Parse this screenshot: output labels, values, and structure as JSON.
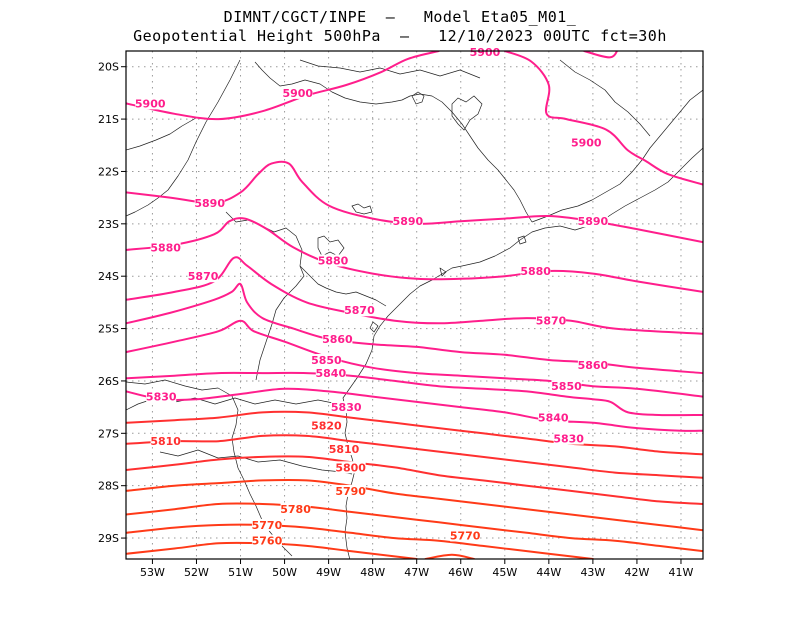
{
  "title": {
    "line1": "DIMNT/CGCT/INPE  —   Model Eta05_M01_",
    "line2": "Geopotential Height 500hPa  —   12/10/2023 00UTC fct=30h"
  },
  "map": {
    "lon_range": [
      -53.6,
      -40.5
    ],
    "lat_range": [
      -29.4,
      -19.7
    ],
    "x_ticks": [
      {
        "value": -53,
        "label": "53W"
      },
      {
        "value": -52,
        "label": "52W"
      },
      {
        "value": -51,
        "label": "51W"
      },
      {
        "value": -50,
        "label": "50W"
      },
      {
        "value": -49,
        "label": "49W"
      },
      {
        "value": -48,
        "label": "48W"
      },
      {
        "value": -47,
        "label": "47W"
      },
      {
        "value": -46,
        "label": "46W"
      },
      {
        "value": -45,
        "label": "45W"
      },
      {
        "value": -44,
        "label": "44W"
      },
      {
        "value": -43,
        "label": "43W"
      },
      {
        "value": -42,
        "label": "42W"
      },
      {
        "value": -41,
        "label": "41W"
      }
    ],
    "y_ticks": [
      {
        "value": -20,
        "label": "20S"
      },
      {
        "value": -21,
        "label": "21S"
      },
      {
        "value": -22,
        "label": "22S"
      },
      {
        "value": -23,
        "label": "23S"
      },
      {
        "value": -24,
        "label": "24S"
      },
      {
        "value": -25,
        "label": "25S"
      },
      {
        "value": -26,
        "label": "26S"
      },
      {
        "value": -27,
        "label": "27S"
      },
      {
        "value": -28,
        "label": "28S"
      },
      {
        "value": -29,
        "label": "29S"
      }
    ],
    "grid": "dotted"
  },
  "contours": [
    {
      "level": 5900,
      "color": "#ff1e8c",
      "points": [
        [
          -53.6,
          -20.7
        ],
        [
          -52.5,
          -20.9
        ],
        [
          -51.5,
          -21.0
        ],
        [
          -50.5,
          -20.85
        ],
        [
          -49.5,
          -20.55
        ],
        [
          -48.6,
          -20.35
        ],
        [
          -47.8,
          -20.1
        ],
        [
          -47.2,
          -19.85
        ],
        [
          -46.5,
          -19.7
        ]
      ]
    },
    {
      "level": 5900,
      "color": "#ff1e8c",
      "points": [
        [
          -45.0,
          -19.7
        ],
        [
          -44.4,
          -19.9
        ],
        [
          -44.0,
          -20.35
        ],
        [
          -44.05,
          -20.9
        ],
        [
          -43.6,
          -21.0
        ],
        [
          -42.7,
          -21.2
        ],
        [
          -42.2,
          -21.6
        ],
        [
          -41.8,
          -21.8
        ],
        [
          -41.3,
          -22.05
        ],
        [
          -40.5,
          -22.25
        ]
      ]
    },
    {
      "level": 5900,
      "color": "#ff1e8c",
      "points": [
        [
          -43.2,
          -19.7
        ],
        [
          -42.6,
          -19.82
        ],
        [
          -42.4,
          -19.6
        ]
      ]
    },
    {
      "level": 5890,
      "color": "#ff1e8c",
      "points": [
        [
          -53.6,
          -22.4
        ],
        [
          -52.6,
          -22.5
        ],
        [
          -51.6,
          -22.6
        ],
        [
          -51.0,
          -22.4
        ],
        [
          -50.6,
          -22.05
        ],
        [
          -50.3,
          -21.85
        ],
        [
          -49.9,
          -21.85
        ],
        [
          -49.6,
          -22.2
        ],
        [
          -49.0,
          -22.65
        ],
        [
          -48.0,
          -22.9
        ],
        [
          -47.0,
          -23.0
        ],
        [
          -46.0,
          -22.95
        ],
        [
          -45.0,
          -22.9
        ],
        [
          -44.0,
          -22.85
        ],
        [
          -43.0,
          -22.95
        ],
        [
          -42.0,
          -23.1
        ],
        [
          -40.5,
          -23.35
        ]
      ]
    },
    {
      "level": 5880,
      "color": "#ff1e8c",
      "points": [
        [
          -53.6,
          -23.5
        ],
        [
          -52.5,
          -23.4
        ],
        [
          -51.6,
          -23.2
        ],
        [
          -51.25,
          -22.95
        ],
        [
          -50.9,
          -22.9
        ],
        [
          -50.4,
          -23.1
        ],
        [
          -49.8,
          -23.45
        ],
        [
          -49.0,
          -23.75
        ],
        [
          -48.0,
          -23.95
        ],
        [
          -47.0,
          -24.05
        ],
        [
          -46.0,
          -24.05
        ],
        [
          -45.0,
          -24.0
        ],
        [
          -44.0,
          -23.9
        ],
        [
          -43.0,
          -23.95
        ],
        [
          -42.0,
          -24.1
        ],
        [
          -40.5,
          -24.3
        ]
      ]
    },
    {
      "level": 5870,
      "color": "#ff1e8c",
      "points": [
        [
          -53.6,
          -24.45
        ],
        [
          -52.5,
          -24.3
        ],
        [
          -51.6,
          -24.1
        ],
        [
          -51.15,
          -23.65
        ],
        [
          -50.85,
          -23.8
        ],
        [
          -50.3,
          -24.15
        ],
        [
          -49.5,
          -24.5
        ],
        [
          -48.5,
          -24.7
        ],
        [
          -47.5,
          -24.85
        ],
        [
          -46.5,
          -24.9
        ],
        [
          -45.5,
          -24.85
        ],
        [
          -44.5,
          -24.8
        ],
        [
          -43.5,
          -24.85
        ],
        [
          -42.5,
          -25.0
        ],
        [
          -40.5,
          -25.1
        ]
      ]
    },
    {
      "level": 5860,
      "color": "#ff1e8c",
      "points": [
        [
          -53.6,
          -24.9
        ],
        [
          -52.6,
          -24.7
        ],
        [
          -51.6,
          -24.45
        ],
        [
          -51.2,
          -24.3
        ],
        [
          -51.0,
          -24.15
        ],
        [
          -50.85,
          -24.5
        ],
        [
          -50.5,
          -24.8
        ],
        [
          -49.8,
          -25.0
        ],
        [
          -49.0,
          -25.2
        ],
        [
          -48.0,
          -25.3
        ],
        [
          -47.0,
          -25.35
        ],
        [
          -46.0,
          -25.45
        ],
        [
          -45.0,
          -25.5
        ],
        [
          -44.0,
          -25.6
        ],
        [
          -43.0,
          -25.65
        ],
        [
          -42.0,
          -25.75
        ],
        [
          -40.5,
          -25.85
        ]
      ]
    },
    {
      "level": 5850,
      "color": "#ff1e8c",
      "points": [
        [
          -53.6,
          -25.45
        ],
        [
          -52.5,
          -25.25
        ],
        [
          -51.5,
          -25.05
        ],
        [
          -51.0,
          -24.85
        ],
        [
          -50.7,
          -25.05
        ],
        [
          -50.0,
          -25.25
        ],
        [
          -49.0,
          -25.55
        ],
        [
          -48.0,
          -25.75
        ],
        [
          -47.0,
          -25.85
        ],
        [
          -46.0,
          -25.9
        ],
        [
          -45.0,
          -25.95
        ],
        [
          -44.0,
          -26.0
        ],
        [
          -43.0,
          -26.1
        ],
        [
          -42.0,
          -26.15
        ],
        [
          -40.5,
          -26.3
        ]
      ]
    },
    {
      "level": 5840,
      "color": "#ff1e8c",
      "points": [
        [
          -53.6,
          -25.95
        ],
        [
          -52.5,
          -25.9
        ],
        [
          -51.5,
          -25.85
        ],
        [
          -50.5,
          -25.85
        ],
        [
          -49.5,
          -25.85
        ],
        [
          -48.5,
          -25.9
        ],
        [
          -47.5,
          -26.0
        ],
        [
          -46.5,
          -26.1
        ],
        [
          -45.5,
          -26.15
        ],
        [
          -44.5,
          -26.2
        ],
        [
          -43.6,
          -26.3
        ],
        [
          -43.0,
          -26.35
        ],
        [
          -42.6,
          -26.4
        ],
        [
          -42.2,
          -26.6
        ],
        [
          -41.5,
          -26.65
        ],
        [
          -40.5,
          -26.65
        ]
      ]
    },
    {
      "level": 5830,
      "color": "#ff1e8c",
      "points": [
        [
          -53.6,
          -26.2
        ],
        [
          -52.8,
          -26.35
        ],
        [
          -52.0,
          -26.35
        ],
        [
          -51.0,
          -26.25
        ],
        [
          -50.0,
          -26.15
        ],
        [
          -49.0,
          -26.2
        ],
        [
          -48.0,
          -26.3
        ],
        [
          -47.0,
          -26.4
        ],
        [
          -46.0,
          -26.5
        ],
        [
          -45.0,
          -26.6
        ],
        [
          -44.0,
          -26.75
        ],
        [
          -43.0,
          -26.8
        ],
        [
          -42.0,
          -26.9
        ],
        [
          -41.0,
          -26.95
        ],
        [
          -40.5,
          -26.95
        ]
      ]
    },
    {
      "level": 5820,
      "color": "#ff3030",
      "points": [
        [
          -53.6,
          -26.8
        ],
        [
          -52.5,
          -26.75
        ],
        [
          -51.5,
          -26.7
        ],
        [
          -50.5,
          -26.6
        ],
        [
          -49.5,
          -26.6
        ],
        [
          -48.5,
          -26.7
        ],
        [
          -47.5,
          -26.8
        ],
        [
          -46.5,
          -26.9
        ],
        [
          -45.5,
          -27.0
        ],
        [
          -44.5,
          -27.1
        ],
        [
          -43.5,
          -27.2
        ],
        [
          -42.5,
          -27.25
        ],
        [
          -41.5,
          -27.35
        ],
        [
          -40.5,
          -27.4
        ]
      ]
    },
    {
      "level": 5810,
      "color": "#ff3030",
      "points": [
        [
          -53.6,
          -27.2
        ],
        [
          -52.5,
          -27.15
        ],
        [
          -51.5,
          -27.15
        ],
        [
          -50.5,
          -27.05
        ],
        [
          -49.5,
          -27.05
        ],
        [
          -48.5,
          -27.15
        ],
        [
          -47.5,
          -27.25
        ],
        [
          -46.5,
          -27.35
        ],
        [
          -45.5,
          -27.45
        ],
        [
          -44.5,
          -27.55
        ],
        [
          -43.5,
          -27.65
        ],
        [
          -42.5,
          -27.75
        ],
        [
          -41.5,
          -27.8
        ],
        [
          -40.5,
          -27.85
        ]
      ]
    },
    {
      "level": 5800,
      "color": "#ff3030",
      "points": [
        [
          -53.6,
          -27.7
        ],
        [
          -52.5,
          -27.6
        ],
        [
          -51.5,
          -27.5
        ],
        [
          -50.5,
          -27.45
        ],
        [
          -49.5,
          -27.45
        ],
        [
          -48.5,
          -27.55
        ],
        [
          -47.5,
          -27.65
        ],
        [
          -46.5,
          -27.8
        ],
        [
          -45.5,
          -27.9
        ],
        [
          -44.5,
          -28.0
        ],
        [
          -43.5,
          -28.1
        ],
        [
          -42.5,
          -28.2
        ],
        [
          -41.5,
          -28.3
        ],
        [
          -40.5,
          -28.35
        ]
      ]
    },
    {
      "level": 5790,
      "color": "#ff3a18",
      "points": [
        [
          -53.6,
          -28.1
        ],
        [
          -52.5,
          -28.0
        ],
        [
          -51.5,
          -27.95
        ],
        [
          -50.5,
          -27.9
        ],
        [
          -49.5,
          -27.9
        ],
        [
          -48.5,
          -28.0
        ],
        [
          -47.5,
          -28.15
        ],
        [
          -46.5,
          -28.25
        ],
        [
          -45.5,
          -28.35
        ],
        [
          -44.5,
          -28.45
        ],
        [
          -43.5,
          -28.55
        ],
        [
          -42.5,
          -28.65
        ],
        [
          -41.5,
          -28.75
        ],
        [
          -40.5,
          -28.85
        ]
      ]
    },
    {
      "level": 5780,
      "color": "#ff3a18",
      "points": [
        [
          -53.6,
          -28.55
        ],
        [
          -52.5,
          -28.45
        ],
        [
          -51.5,
          -28.35
        ],
        [
          -50.5,
          -28.35
        ],
        [
          -49.5,
          -28.4
        ],
        [
          -48.5,
          -28.5
        ],
        [
          -47.5,
          -28.6
        ],
        [
          -46.5,
          -28.7
        ],
        [
          -45.5,
          -28.8
        ],
        [
          -44.5,
          -28.9
        ],
        [
          -43.5,
          -29.0
        ],
        [
          -42.5,
          -29.05
        ],
        [
          -41.5,
          -29.15
        ],
        [
          -40.5,
          -29.25
        ]
      ]
    },
    {
      "level": 5770,
      "color": "#ff3a18",
      "points": [
        [
          -53.6,
          -28.9
        ],
        [
          -52.5,
          -28.8
        ],
        [
          -51.5,
          -28.75
        ],
        [
          -50.5,
          -28.75
        ],
        [
          -49.5,
          -28.8
        ],
        [
          -48.5,
          -28.9
        ],
        [
          -47.5,
          -29.0
        ],
        [
          -46.5,
          -29.05
        ],
        [
          -45.5,
          -29.15
        ],
        [
          -44.5,
          -29.25
        ],
        [
          -43.5,
          -29.35
        ],
        [
          -43.0,
          -29.4
        ]
      ]
    },
    {
      "level": 5760,
      "color": "#ff3a18",
      "points": [
        [
          -53.6,
          -29.3
        ],
        [
          -52.5,
          -29.2
        ],
        [
          -51.5,
          -29.1
        ],
        [
          -50.5,
          -29.1
        ],
        [
          -49.5,
          -29.15
        ],
        [
          -48.5,
          -29.25
        ],
        [
          -47.5,
          -29.35
        ],
        [
          -47.0,
          -29.4
        ]
      ]
    },
    {
      "level": 5760,
      "color": "#ff3a18",
      "points": [
        [
          -46.8,
          -29.4
        ],
        [
          -46.2,
          -29.32
        ],
        [
          -45.7,
          -29.4
        ]
      ]
    }
  ],
  "contour_labels": [
    {
      "text": "5900",
      "lon": -53.05,
      "lat": -20.7,
      "color": "#ff1e8c"
    },
    {
      "text": "5900",
      "lon": -49.7,
      "lat": -20.5,
      "color": "#ff1e8c"
    },
    {
      "text": "5900",
      "lon": -45.45,
      "lat": -19.72,
      "color": "#ff1e8c"
    },
    {
      "text": "5900",
      "lon": -43.15,
      "lat": -21.45,
      "color": "#ff1e8c"
    },
    {
      "text": "5890",
      "lon": -51.7,
      "lat": -22.6,
      "color": "#ff1e8c"
    },
    {
      "text": "5890",
      "lon": -47.2,
      "lat": -22.95,
      "color": "#ff1e8c"
    },
    {
      "text": "5890",
      "lon": -43.0,
      "lat": -22.95,
      "color": "#ff1e8c"
    },
    {
      "text": "5880",
      "lon": -52.7,
      "lat": -23.45,
      "color": "#ff1e8c"
    },
    {
      "text": "5880",
      "lon": -48.9,
      "lat": -23.7,
      "color": "#ff1e8c"
    },
    {
      "text": "5880",
      "lon": -44.3,
      "lat": -23.9,
      "color": "#ff1e8c"
    },
    {
      "text": "5870",
      "lon": -51.85,
      "lat": -24.0,
      "color": "#ff1e8c"
    },
    {
      "text": "5870",
      "lon": -48.3,
      "lat": -24.65,
      "color": "#ff1e8c"
    },
    {
      "text": "5870",
      "lon": -43.95,
      "lat": -24.85,
      "color": "#ff1e8c"
    },
    {
      "text": "5860",
      "lon": -48.8,
      "lat": -25.2,
      "color": "#ff1e8c"
    },
    {
      "text": "5860",
      "lon": -43.0,
      "lat": -25.7,
      "color": "#ff1e8c"
    },
    {
      "text": "5850",
      "lon": -49.05,
      "lat": -25.6,
      "color": "#ff1e8c"
    },
    {
      "text": "5850",
      "lon": -43.6,
      "lat": -26.1,
      "color": "#ff1e8c"
    },
    {
      "text": "5840",
      "lon": -48.95,
      "lat": -25.85,
      "color": "#ff1e8c"
    },
    {
      "text": "5840",
      "lon": -43.9,
      "lat": -26.7,
      "color": "#ff1e8c"
    },
    {
      "text": "5830",
      "lon": -52.8,
      "lat": -26.3,
      "color": "#ff1e8c"
    },
    {
      "text": "5830",
      "lon": -48.6,
      "lat": -26.5,
      "color": "#ff1e8c"
    },
    {
      "text": "5830",
      "lon": -43.55,
      "lat": -27.1,
      "color": "#ff1e8c"
    },
    {
      "text": "5820",
      "lon": -49.05,
      "lat": -26.85,
      "color": "#ff3030"
    },
    {
      "text": "5810",
      "lon": -52.7,
      "lat": -27.15,
      "color": "#ff3030"
    },
    {
      "text": "5810",
      "lon": -48.65,
      "lat": -27.3,
      "color": "#ff3030"
    },
    {
      "text": "5800",
      "lon": -48.5,
      "lat": -27.65,
      "color": "#ff3030"
    },
    {
      "text": "5790",
      "lon": -48.5,
      "lat": -28.1,
      "color": "#ff3a18"
    },
    {
      "text": "5780",
      "lon": -49.75,
      "lat": -28.45,
      "color": "#ff3a18"
    },
    {
      "text": "5770",
      "lon": -50.4,
      "lat": -28.75,
      "color": "#ff3a18"
    },
    {
      "text": "5770",
      "lon": -45.9,
      "lat": -28.95,
      "color": "#ff3a18"
    },
    {
      "text": "5760",
      "lon": -50.4,
      "lat": -29.05,
      "color": "#ff3a18"
    }
  ]
}
